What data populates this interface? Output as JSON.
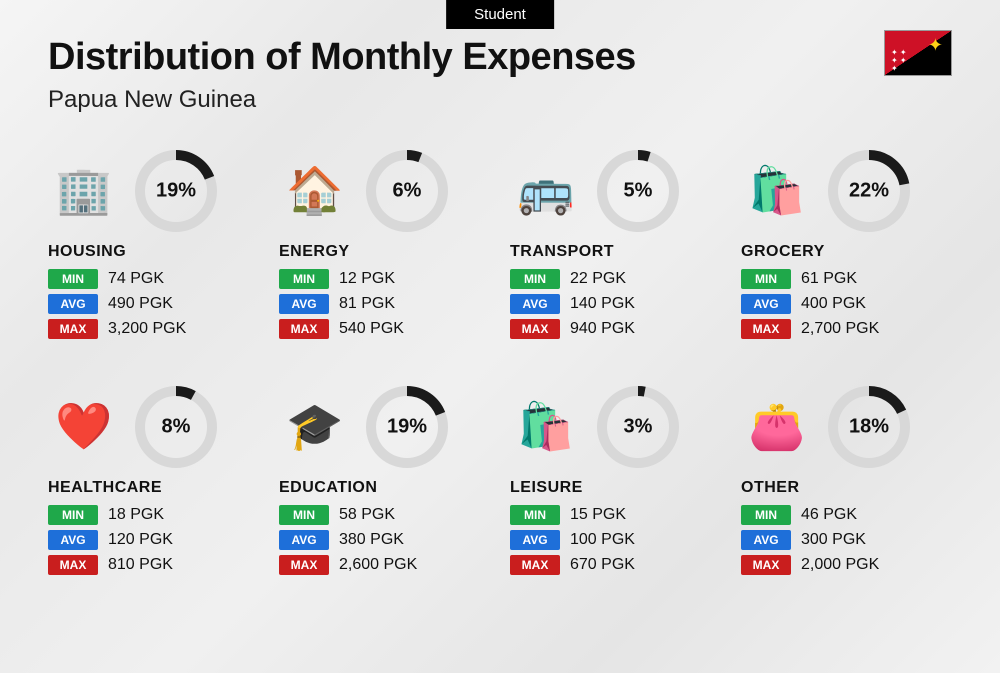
{
  "header_badge": "Student",
  "title": "Distribution of Monthly Expenses",
  "subtitle": "Papua New Guinea",
  "currency": "PGK",
  "labels": {
    "min": "MIN",
    "avg": "AVG",
    "max": "MAX"
  },
  "colors": {
    "badge_min": "#1fa84a",
    "badge_avg": "#1e6fd9",
    "badge_max": "#c91e1e",
    "donut_fg": "#1a1a1a",
    "donut_bg": "#d8d8d8"
  },
  "donut": {
    "radius": 36,
    "stroke_width": 10
  },
  "categories": [
    {
      "key": "housing",
      "name": "HOUSING",
      "pct": 19,
      "min": "74 PGK",
      "avg": "490 PGK",
      "max": "3,200 PGK",
      "icon": "🏢",
      "icon_class": "ic-housing"
    },
    {
      "key": "energy",
      "name": "ENERGY",
      "pct": 6,
      "min": "12 PGK",
      "avg": "81 PGK",
      "max": "540 PGK",
      "icon": "🏠",
      "icon_class": "ic-energy"
    },
    {
      "key": "transport",
      "name": "TRANSPORT",
      "pct": 5,
      "min": "22 PGK",
      "avg": "140 PGK",
      "max": "940 PGK",
      "icon": "🚌",
      "icon_class": "ic-transport"
    },
    {
      "key": "grocery",
      "name": "GROCERY",
      "pct": 22,
      "min": "61 PGK",
      "avg": "400 PGK",
      "max": "2,700 PGK",
      "icon": "🛍️",
      "icon_class": "ic-grocery"
    },
    {
      "key": "healthcare",
      "name": "HEALTHCARE",
      "pct": 8,
      "min": "18 PGK",
      "avg": "120 PGK",
      "max": "810 PGK",
      "icon": "❤️",
      "icon_class": "ic-healthcare"
    },
    {
      "key": "education",
      "name": "EDUCATION",
      "pct": 19,
      "min": "58 PGK",
      "avg": "380 PGK",
      "max": "2,600 PGK",
      "icon": "🎓",
      "icon_class": "ic-education"
    },
    {
      "key": "leisure",
      "name": "LEISURE",
      "pct": 3,
      "min": "15 PGK",
      "avg": "100 PGK",
      "max": "670 PGK",
      "icon": "🛍️",
      "icon_class": "ic-leisure"
    },
    {
      "key": "other",
      "name": "OTHER",
      "pct": 18,
      "min": "46 PGK",
      "avg": "300 PGK",
      "max": "2,000 PGK",
      "icon": "👛",
      "icon_class": "ic-other"
    }
  ]
}
